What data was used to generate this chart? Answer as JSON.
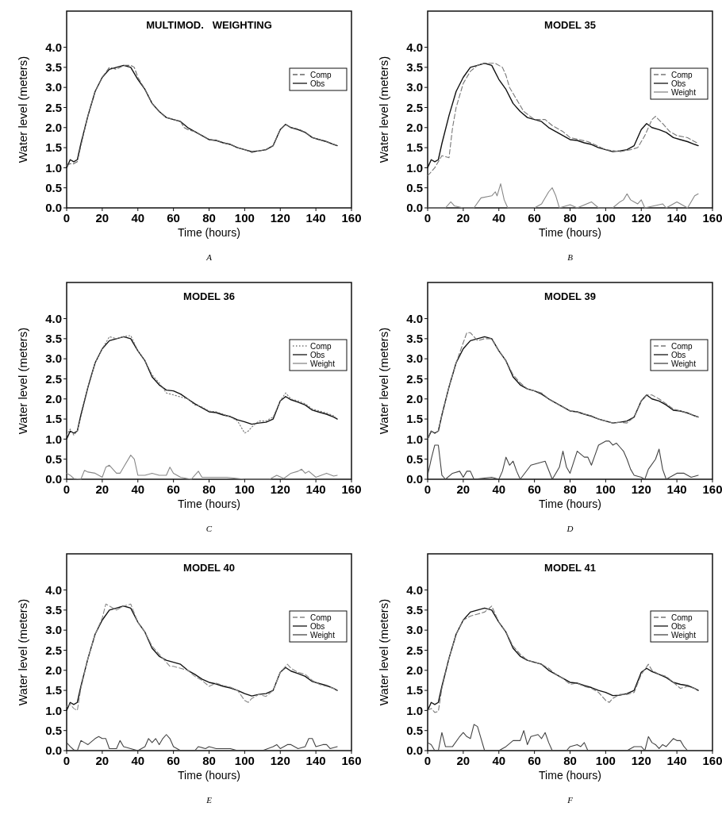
{
  "chart_data": [
    {
      "type": "line",
      "title": "MULTIMOD.   WEIGHTING",
      "xlabel": "Time (hours)",
      "ylabel": "Water level (meters)",
      "xlim": [
        0,
        160
      ],
      "ylim": [
        0,
        4.9
      ],
      "xticks": [
        0,
        20,
        40,
        60,
        80,
        100,
        120,
        140,
        160
      ],
      "yticks": [
        {
          "value": 0,
          "label": "0.0"
        },
        {
          "value": 0.5,
          "label": "0.5"
        },
        {
          "value": 1,
          "label": "1.0"
        },
        {
          "value": 1.5,
          "label": "1.5"
        },
        {
          "value": 2,
          "label": "2.0"
        },
        {
          "value": 2.5,
          "label": "2.5"
        },
        {
          "value": 3,
          "label": "3.0"
        },
        {
          "value": 3.5,
          "label": "3.5"
        },
        {
          "value": 4,
          "label": "4.0"
        }
      ],
      "legend": "top right",
      "annotations": [
        "A"
      ],
      "series": [
        {
          "name": "Comp",
          "color": "#666666",
          "line_style": "dashed",
          "x": [
            0,
            2,
            4,
            6,
            8,
            12,
            16,
            20,
            24,
            28,
            32,
            36,
            38,
            40,
            44,
            48,
            52,
            56,
            60,
            64,
            66,
            68,
            72,
            76,
            80,
            84,
            88,
            92,
            96,
            100,
            104,
            108,
            112,
            116,
            120,
            123,
            126,
            130,
            134,
            138,
            142,
            146,
            150,
            152
          ],
          "values": [
            1.05,
            1.1,
            1.1,
            1.15,
            1.55,
            2.3,
            2.9,
            3.25,
            3.5,
            3.45,
            3.55,
            3.55,
            3.5,
            3.25,
            2.95,
            2.6,
            2.4,
            2.25,
            2.2,
            2.15,
            2.0,
            1.95,
            1.9,
            1.8,
            1.7,
            1.68,
            1.62,
            1.58,
            1.5,
            1.45,
            1.38,
            1.42,
            1.45,
            1.55,
            1.95,
            2.08,
            2.0,
            1.97,
            1.88,
            1.75,
            1.7,
            1.65,
            1.58,
            1.55
          ]
        },
        {
          "name": "Obs",
          "color": "#111111",
          "line_style": "solid",
          "x": [
            0,
            2,
            4,
            6,
            8,
            12,
            16,
            20,
            24,
            28,
            32,
            36,
            40,
            44,
            48,
            52,
            56,
            60,
            64,
            68,
            72,
            76,
            80,
            84,
            88,
            92,
            96,
            100,
            104,
            108,
            112,
            116,
            120,
            123,
            126,
            130,
            134,
            138,
            142,
            146,
            150,
            152
          ],
          "values": [
            1.0,
            1.2,
            1.15,
            1.2,
            1.6,
            2.3,
            2.9,
            3.25,
            3.45,
            3.5,
            3.55,
            3.5,
            3.2,
            2.95,
            2.6,
            2.4,
            2.25,
            2.2,
            2.15,
            2.0,
            1.9,
            1.8,
            1.7,
            1.68,
            1.62,
            1.58,
            1.5,
            1.45,
            1.4,
            1.42,
            1.45,
            1.55,
            1.95,
            2.08,
            2.0,
            1.95,
            1.88,
            1.75,
            1.7,
            1.65,
            1.58,
            1.55
          ]
        }
      ]
    },
    {
      "type": "line",
      "title": "MODEL 35",
      "xlabel": "Time (hours)",
      "ylabel": "Water level (meters)",
      "xlim": [
        0,
        160
      ],
      "ylim": [
        0,
        4.9
      ],
      "xticks": [
        0,
        20,
        40,
        60,
        80,
        100,
        120,
        140,
        160
      ],
      "yticks": [
        {
          "value": 0,
          "label": "0.0"
        },
        {
          "value": 0.5,
          "label": "0.5"
        },
        {
          "value": 1,
          "label": "1.0"
        },
        {
          "value": 1.5,
          "label": "1.5"
        },
        {
          "value": 2,
          "label": "2.0"
        },
        {
          "value": 2.5,
          "label": "2.5"
        },
        {
          "value": 3,
          "label": "3.0"
        },
        {
          "value": 3.5,
          "label": "3.5"
        },
        {
          "value": 4,
          "label": "4.0"
        }
      ],
      "legend": "top right",
      "annotations": [
        "B"
      ],
      "series": [
        {
          "name": "Comp",
          "color": "#777777",
          "line_style": "dashed",
          "x": [
            0,
            4,
            8,
            12,
            14,
            16,
            20,
            24,
            28,
            32,
            38,
            42,
            44,
            46,
            50,
            54,
            60,
            66,
            70,
            76,
            80,
            90,
            100,
            108,
            114,
            118,
            122,
            126,
            128,
            132,
            136,
            140,
            146,
            152
          ],
          "values": [
            0.8,
            1.0,
            1.3,
            1.25,
            2.0,
            2.5,
            3.1,
            3.4,
            3.55,
            3.6,
            3.6,
            3.5,
            3.3,
            3.0,
            2.7,
            2.4,
            2.2,
            2.2,
            2.05,
            1.9,
            1.75,
            1.65,
            1.45,
            1.4,
            1.45,
            1.5,
            1.8,
            2.2,
            2.28,
            2.1,
            1.9,
            1.8,
            1.75,
            1.6
          ]
        },
        {
          "name": "Obs",
          "color": "#111111",
          "line_style": "solid",
          "x": [
            0,
            2,
            4,
            6,
            8,
            12,
            16,
            20,
            24,
            28,
            32,
            36,
            40,
            44,
            48,
            52,
            56,
            60,
            64,
            68,
            72,
            76,
            80,
            84,
            88,
            92,
            96,
            100,
            104,
            108,
            112,
            116,
            120,
            123,
            126,
            130,
            134,
            138,
            142,
            146,
            150,
            152
          ],
          "values": [
            1.0,
            1.2,
            1.15,
            1.2,
            1.6,
            2.3,
            2.9,
            3.25,
            3.5,
            3.55,
            3.6,
            3.55,
            3.2,
            2.95,
            2.6,
            2.4,
            2.25,
            2.2,
            2.15,
            2.0,
            1.9,
            1.8,
            1.7,
            1.68,
            1.62,
            1.58,
            1.5,
            1.45,
            1.4,
            1.42,
            1.45,
            1.55,
            1.95,
            2.1,
            2.0,
            1.95,
            1.88,
            1.75,
            1.7,
            1.65,
            1.58,
            1.55
          ]
        },
        {
          "name": "Weight",
          "color": "#888888",
          "line_style": "solid",
          "x": [
            0,
            10,
            13,
            15,
            20,
            26,
            30,
            36,
            38,
            39,
            41,
            43,
            45,
            60,
            64,
            68,
            70,
            72,
            74,
            80,
            84,
            92,
            96,
            104,
            108,
            110,
            112,
            114,
            116,
            118,
            120,
            122,
            132,
            134,
            140,
            146,
            150,
            152
          ],
          "values": [
            0,
            0,
            0.15,
            0.05,
            0,
            0,
            0.25,
            0.3,
            0.4,
            0.3,
            0.6,
            0.2,
            0,
            0,
            0.1,
            0.4,
            0.5,
            0.3,
            0,
            0.08,
            0,
            0.15,
            0,
            0,
            0.15,
            0.2,
            0.35,
            0.2,
            0.15,
            0.1,
            0.2,
            0,
            0.1,
            0,
            0.15,
            0,
            0.3,
            0.35
          ]
        }
      ]
    },
    {
      "type": "line",
      "title": "MODEL 36",
      "xlabel": "Time (hours)",
      "ylabel": "Water level (meters)",
      "xlim": [
        0,
        160
      ],
      "ylim": [
        0,
        4.9
      ],
      "xticks": [
        0,
        20,
        40,
        60,
        80,
        100,
        120,
        140,
        160
      ],
      "yticks": [
        {
          "value": 0,
          "label": "0.0"
        },
        {
          "value": 0.5,
          "label": "0.5"
        },
        {
          "value": 1,
          "label": "1.0"
        },
        {
          "value": 1.5,
          "label": "1.5"
        },
        {
          "value": 2,
          "label": "2.0"
        },
        {
          "value": 2.5,
          "label": "2.5"
        },
        {
          "value": 3,
          "label": "3.0"
        },
        {
          "value": 3.5,
          "label": "3.5"
        },
        {
          "value": 4,
          "label": "4.0"
        }
      ],
      "legend": "top right",
      "annotations": [
        "C"
      ],
      "series": [
        {
          "name": "Comp",
          "color": "#777777",
          "line_style": "dotted",
          "x": [
            0,
            2,
            4,
            6,
            8,
            12,
            16,
            20,
            24,
            28,
            32,
            36,
            40,
            44,
            48,
            52,
            56,
            60,
            64,
            68,
            72,
            76,
            80,
            84,
            88,
            92,
            96,
            100,
            102,
            104,
            108,
            112,
            116,
            120,
            123,
            126,
            130,
            134,
            138,
            142,
            146,
            150,
            152
          ],
          "values": [
            1.1,
            1.25,
            1.1,
            1.2,
            1.55,
            2.3,
            2.9,
            3.25,
            3.55,
            3.5,
            3.55,
            3.58,
            3.2,
            2.95,
            2.6,
            2.4,
            2.15,
            2.1,
            2.05,
            2.0,
            1.85,
            1.8,
            1.7,
            1.68,
            1.62,
            1.55,
            1.45,
            1.15,
            1.2,
            1.3,
            1.45,
            1.45,
            1.55,
            1.95,
            2.15,
            2.0,
            1.95,
            1.88,
            1.75,
            1.7,
            1.65,
            1.58,
            1.5
          ]
        },
        {
          "name": "Obs",
          "color": "#111111",
          "line_style": "solid",
          "x": [
            0,
            2,
            4,
            6,
            8,
            12,
            16,
            20,
            24,
            28,
            32,
            36,
            40,
            44,
            48,
            52,
            56,
            60,
            64,
            68,
            72,
            76,
            80,
            84,
            88,
            92,
            96,
            100,
            104,
            108,
            112,
            116,
            120,
            123,
            126,
            130,
            134,
            138,
            142,
            146,
            150,
            152
          ],
          "values": [
            1.0,
            1.2,
            1.15,
            1.2,
            1.6,
            2.3,
            2.9,
            3.25,
            3.45,
            3.5,
            3.55,
            3.5,
            3.2,
            2.95,
            2.55,
            2.35,
            2.22,
            2.2,
            2.12,
            2.0,
            1.88,
            1.78,
            1.68,
            1.66,
            1.6,
            1.56,
            1.48,
            1.43,
            1.37,
            1.4,
            1.42,
            1.5,
            1.95,
            2.06,
            1.98,
            1.92,
            1.85,
            1.72,
            1.67,
            1.62,
            1.55,
            1.5
          ]
        },
        {
          "name": "Weight",
          "color": "#888888",
          "line_style": "solid",
          "x": [
            0,
            2,
            4,
            8,
            10,
            12,
            16,
            20,
            22,
            24,
            26,
            28,
            30,
            32,
            36,
            38,
            40,
            44,
            48,
            52,
            56,
            58,
            60,
            64,
            70,
            74,
            76,
            80,
            90,
            100,
            114,
            118,
            122,
            126,
            130,
            132,
            134,
            136,
            140,
            146,
            150,
            152
          ],
          "values": [
            0.15,
            0.1,
            0.02,
            0,
            0.22,
            0.18,
            0.15,
            0.05,
            0.3,
            0.35,
            0.25,
            0.15,
            0.15,
            0.3,
            0.6,
            0.5,
            0.1,
            0.1,
            0.15,
            0.1,
            0.1,
            0.3,
            0.15,
            0.05,
            0,
            0.2,
            0.05,
            0.05,
            0.05,
            0,
            0,
            0.1,
            0.02,
            0.15,
            0.2,
            0.25,
            0.15,
            0.2,
            0.05,
            0.15,
            0.08,
            0.1
          ]
        }
      ]
    },
    {
      "type": "line",
      "title": "MODEL 39",
      "xlabel": "Time (hours)",
      "ylabel": "Water level (meters)",
      "xlim": [
        0,
        160
      ],
      "ylim": [
        0,
        4.9
      ],
      "xticks": [
        0,
        20,
        40,
        60,
        80,
        100,
        120,
        140,
        160
      ],
      "yticks": [
        {
          "value": 0,
          "label": "0.0"
        },
        {
          "value": 0.5,
          "label": "0.5"
        },
        {
          "value": 1,
          "label": "1.0"
        },
        {
          "value": 1.5,
          "label": "1.5"
        },
        {
          "value": 2,
          "label": "2.0"
        },
        {
          "value": 2.5,
          "label": "2.5"
        },
        {
          "value": 3,
          "label": "3.0"
        },
        {
          "value": 3.5,
          "label": "3.5"
        },
        {
          "value": 4,
          "label": "4.0"
        }
      ],
      "legend": "top right",
      "annotations": [
        "D"
      ],
      "series": [
        {
          "name": "Comp",
          "color": "#777777",
          "line_style": "dashed",
          "x": [
            0,
            2,
            4,
            6,
            8,
            12,
            16,
            20,
            22,
            24,
            28,
            32,
            36,
            40,
            44,
            48,
            52,
            56,
            60,
            64,
            68,
            72,
            76,
            80,
            84,
            88,
            92,
            96,
            100,
            104,
            108,
            112,
            116,
            120,
            123,
            126,
            130,
            134,
            138,
            142,
            146,
            150,
            152
          ],
          "values": [
            1.0,
            1.2,
            1.15,
            1.2,
            1.6,
            2.3,
            2.9,
            3.4,
            3.65,
            3.65,
            3.45,
            3.5,
            3.5,
            3.2,
            2.95,
            2.6,
            2.4,
            2.25,
            2.2,
            2.15,
            2.0,
            1.9,
            1.8,
            1.7,
            1.68,
            1.62,
            1.58,
            1.5,
            1.45,
            1.4,
            1.42,
            1.4,
            1.55,
            1.95,
            2.1,
            2.1,
            2.0,
            1.88,
            1.75,
            1.7,
            1.65,
            1.58,
            1.55
          ]
        },
        {
          "name": "Obs",
          "color": "#111111",
          "line_style": "solid",
          "x": [
            0,
            2,
            4,
            6,
            8,
            12,
            16,
            20,
            24,
            28,
            32,
            36,
            40,
            44,
            48,
            52,
            56,
            60,
            64,
            68,
            72,
            76,
            80,
            84,
            88,
            92,
            96,
            100,
            104,
            108,
            112,
            116,
            120,
            123,
            126,
            130,
            134,
            138,
            142,
            146,
            150,
            152
          ],
          "values": [
            1.0,
            1.2,
            1.15,
            1.2,
            1.6,
            2.3,
            2.9,
            3.25,
            3.45,
            3.5,
            3.55,
            3.5,
            3.2,
            2.95,
            2.55,
            2.35,
            2.25,
            2.2,
            2.12,
            2.0,
            1.9,
            1.8,
            1.7,
            1.68,
            1.62,
            1.57,
            1.5,
            1.45,
            1.4,
            1.42,
            1.45,
            1.55,
            1.95,
            2.1,
            2.0,
            1.95,
            1.85,
            1.72,
            1.7,
            1.65,
            1.58,
            1.55
          ]
        },
        {
          "name": "Weight",
          "color": "#444444",
          "line_style": "solid",
          "x": [
            0,
            2,
            4,
            6,
            8,
            10,
            14,
            18,
            20,
            22,
            24,
            26,
            36,
            40,
            42,
            44,
            46,
            48,
            50,
            52,
            58,
            62,
            66,
            70,
            72,
            74,
            76,
            78,
            80,
            84,
            88,
            90,
            92,
            94,
            96,
            100,
            102,
            104,
            106,
            108,
            110,
            112,
            114,
            116,
            120,
            122,
            124,
            128,
            130,
            132,
            134,
            140,
            144,
            146,
            148,
            152
          ],
          "values": [
            0.1,
            0.5,
            0.85,
            0.85,
            0.1,
            0,
            0.15,
            0.2,
            0.05,
            0.2,
            0.2,
            0,
            0.05,
            0,
            0.2,
            0.55,
            0.35,
            0.45,
            0.2,
            0,
            0.35,
            0.4,
            0.45,
            0,
            0.15,
            0.3,
            0.7,
            0.3,
            0.15,
            0.7,
            0.55,
            0.55,
            0.35,
            0.6,
            0.85,
            0.95,
            0.95,
            0.85,
            0.9,
            0.8,
            0.7,
            0.5,
            0.25,
            0.1,
            0.05,
            0,
            0.25,
            0.5,
            0.75,
            0.25,
            0,
            0.15,
            0.15,
            0.1,
            0.05,
            0.1
          ]
        }
      ]
    },
    {
      "type": "line",
      "title": "MODEL 40",
      "xlabel": "Time (hours)",
      "ylabel": "Water level (meters)",
      "xlim": [
        0,
        160
      ],
      "ylim": [
        0,
        4.9
      ],
      "xticks": [
        0,
        20,
        40,
        60,
        80,
        100,
        120,
        140,
        160
      ],
      "yticks": [
        {
          "value": 0,
          "label": "0.0"
        },
        {
          "value": 0.5,
          "label": "0.5"
        },
        {
          "value": 1,
          "label": "1.0"
        },
        {
          "value": 1.5,
          "label": "1.5"
        },
        {
          "value": 2,
          "label": "2.0"
        },
        {
          "value": 2.5,
          "label": "2.5"
        },
        {
          "value": 3,
          "label": "3.0"
        },
        {
          "value": 3.5,
          "label": "3.5"
        },
        {
          "value": 4,
          "label": "4.0"
        }
      ],
      "legend": "top right",
      "annotations": [
        "E"
      ],
      "series": [
        {
          "name": "Comp",
          "color": "#888888",
          "line_style": "dashed",
          "x": [
            0,
            2,
            4,
            6,
            8,
            12,
            16,
            20,
            22,
            24,
            28,
            32,
            36,
            40,
            44,
            48,
            52,
            56,
            58,
            60,
            64,
            68,
            72,
            76,
            80,
            84,
            88,
            92,
            96,
            100,
            102,
            104,
            108,
            112,
            116,
            120,
            124,
            126,
            130,
            134,
            138,
            142,
            146,
            150,
            152
          ],
          "values": [
            1.1,
            1.15,
            1.05,
            1.0,
            1.55,
            2.3,
            2.9,
            3.3,
            3.65,
            3.6,
            3.5,
            3.6,
            3.65,
            3.2,
            2.95,
            2.6,
            2.4,
            2.2,
            2.1,
            2.1,
            2.05,
            2.0,
            1.85,
            1.75,
            1.6,
            1.68,
            1.62,
            1.58,
            1.5,
            1.25,
            1.2,
            1.3,
            1.4,
            1.35,
            1.5,
            1.95,
            2.15,
            2.05,
            1.95,
            1.9,
            1.75,
            1.65,
            1.6,
            1.55,
            1.5
          ]
        },
        {
          "name": "Obs",
          "color": "#111111",
          "line_style": "solid",
          "x": [
            0,
            2,
            4,
            6,
            8,
            12,
            16,
            20,
            24,
            28,
            32,
            36,
            40,
            44,
            48,
            52,
            56,
            60,
            64,
            68,
            72,
            76,
            80,
            84,
            88,
            92,
            96,
            100,
            104,
            108,
            112,
            116,
            120,
            123,
            126,
            130,
            134,
            138,
            142,
            146,
            150,
            152
          ],
          "values": [
            1.0,
            1.2,
            1.15,
            1.2,
            1.6,
            2.3,
            2.9,
            3.25,
            3.5,
            3.55,
            3.6,
            3.55,
            3.2,
            2.95,
            2.55,
            2.35,
            2.25,
            2.2,
            2.15,
            2.0,
            1.9,
            1.78,
            1.7,
            1.66,
            1.6,
            1.56,
            1.5,
            1.42,
            1.36,
            1.4,
            1.42,
            1.5,
            1.95,
            2.07,
            1.98,
            1.92,
            1.85,
            1.72,
            1.67,
            1.62,
            1.55,
            1.5
          ]
        },
        {
          "name": "Weight",
          "color": "#444444",
          "line_style": "solid",
          "x": [
            0,
            2,
            4,
            6,
            8,
            10,
            12,
            16,
            18,
            20,
            22,
            24,
            28,
            30,
            32,
            36,
            40,
            44,
            46,
            48,
            50,
            52,
            54,
            56,
            58,
            60,
            64,
            72,
            74,
            78,
            80,
            84,
            92,
            96,
            110,
            116,
            118,
            120,
            124,
            126,
            130,
            134,
            136,
            138,
            140,
            144,
            146,
            148,
            152
          ],
          "values": [
            0.2,
            0.1,
            0.02,
            0,
            0.25,
            0.2,
            0.15,
            0.3,
            0.35,
            0.3,
            0.3,
            0.05,
            0.05,
            0.25,
            0.1,
            0.05,
            0,
            0.1,
            0.3,
            0.2,
            0.3,
            0.15,
            0.3,
            0.4,
            0.3,
            0.1,
            0,
            0,
            0.1,
            0.05,
            0.1,
            0.05,
            0.05,
            0,
            0,
            0.1,
            0.15,
            0.05,
            0.15,
            0.15,
            0.05,
            0.1,
            0.3,
            0.3,
            0.1,
            0.15,
            0.15,
            0.05,
            0.1
          ]
        }
      ]
    },
    {
      "type": "line",
      "title": "MODEL 41",
      "xlabel": "Time (hours)",
      "ylabel": "Water level (meters)",
      "xlim": [
        0,
        160
      ],
      "ylim": [
        0,
        4.9
      ],
      "xticks": [
        0,
        20,
        40,
        60,
        80,
        100,
        120,
        140,
        160
      ],
      "yticks": [
        {
          "value": 0,
          "label": "0.0"
        },
        {
          "value": 0.5,
          "label": "0.5"
        },
        {
          "value": 1,
          "label": "1.0"
        },
        {
          "value": 1.5,
          "label": "1.5"
        },
        {
          "value": 2,
          "label": "2.0"
        },
        {
          "value": 2.5,
          "label": "2.5"
        },
        {
          "value": 3,
          "label": "3.0"
        },
        {
          "value": 3.5,
          "label": "3.5"
        },
        {
          "value": 4,
          "label": "4.0"
        }
      ],
      "legend": "top right",
      "annotations": [
        "F"
      ],
      "series": [
        {
          "name": "Comp",
          "color": "#777777",
          "line_style": "dashed",
          "x": [
            0,
            2,
            4,
            6,
            8,
            12,
            16,
            20,
            24,
            28,
            32,
            36,
            40,
            44,
            48,
            52,
            56,
            60,
            64,
            68,
            72,
            76,
            80,
            84,
            88,
            92,
            96,
            100,
            102,
            104,
            108,
            112,
            116,
            120,
            124,
            126,
            130,
            134,
            138,
            142,
            146,
            150,
            152
          ],
          "values": [
            1.0,
            1.05,
            0.95,
            0.98,
            1.55,
            2.3,
            2.9,
            3.25,
            3.35,
            3.4,
            3.45,
            3.6,
            3.2,
            2.95,
            2.6,
            2.4,
            2.25,
            2.2,
            2.15,
            2.05,
            1.9,
            1.8,
            1.65,
            1.68,
            1.6,
            1.55,
            1.45,
            1.25,
            1.2,
            1.3,
            1.4,
            1.4,
            1.45,
            1.9,
            2.15,
            2.0,
            1.9,
            1.85,
            1.7,
            1.55,
            1.6,
            1.55,
            1.5
          ]
        },
        {
          "name": "Obs",
          "color": "#111111",
          "line_style": "solid",
          "x": [
            0,
            2,
            4,
            6,
            8,
            12,
            16,
            20,
            24,
            28,
            32,
            36,
            40,
            44,
            48,
            52,
            56,
            60,
            64,
            68,
            72,
            76,
            80,
            84,
            88,
            92,
            96,
            100,
            104,
            108,
            112,
            116,
            120,
            123,
            126,
            130,
            134,
            138,
            142,
            146,
            150,
            152
          ],
          "values": [
            1.0,
            1.2,
            1.15,
            1.2,
            1.6,
            2.3,
            2.9,
            3.25,
            3.45,
            3.5,
            3.55,
            3.5,
            3.2,
            2.95,
            2.55,
            2.35,
            2.25,
            2.2,
            2.15,
            2.0,
            1.9,
            1.8,
            1.7,
            1.68,
            1.62,
            1.57,
            1.5,
            1.45,
            1.37,
            1.38,
            1.42,
            1.5,
            1.95,
            2.05,
            1.97,
            1.9,
            1.82,
            1.7,
            1.65,
            1.62,
            1.55,
            1.5
          ]
        },
        {
          "name": "Weight",
          "color": "#444444",
          "line_style": "solid",
          "x": [
            0,
            2,
            4,
            6,
            8,
            10,
            14,
            18,
            20,
            22,
            24,
            26,
            28,
            30,
            32,
            40,
            44,
            48,
            52,
            54,
            56,
            58,
            62,
            64,
            66,
            68,
            70,
            78,
            80,
            84,
            86,
            88,
            90,
            112,
            116,
            120,
            122,
            124,
            126,
            128,
            130,
            132,
            134,
            138,
            140,
            142,
            144,
            146
          ],
          "values": [
            0.2,
            0.15,
            0,
            0,
            0.45,
            0.1,
            0.1,
            0.35,
            0.45,
            0.35,
            0.3,
            0.65,
            0.6,
            0.3,
            0,
            0,
            0.1,
            0.25,
            0.25,
            0.5,
            0.15,
            0.35,
            0.4,
            0.3,
            0.45,
            0.2,
            0,
            0,
            0.1,
            0.15,
            0.1,
            0.2,
            0,
            0,
            0.1,
            0.1,
            0,
            0.35,
            0.2,
            0.15,
            0.05,
            0.15,
            0.1,
            0.3,
            0.25,
            0.25,
            0.1,
            0
          ]
        }
      ]
    }
  ]
}
